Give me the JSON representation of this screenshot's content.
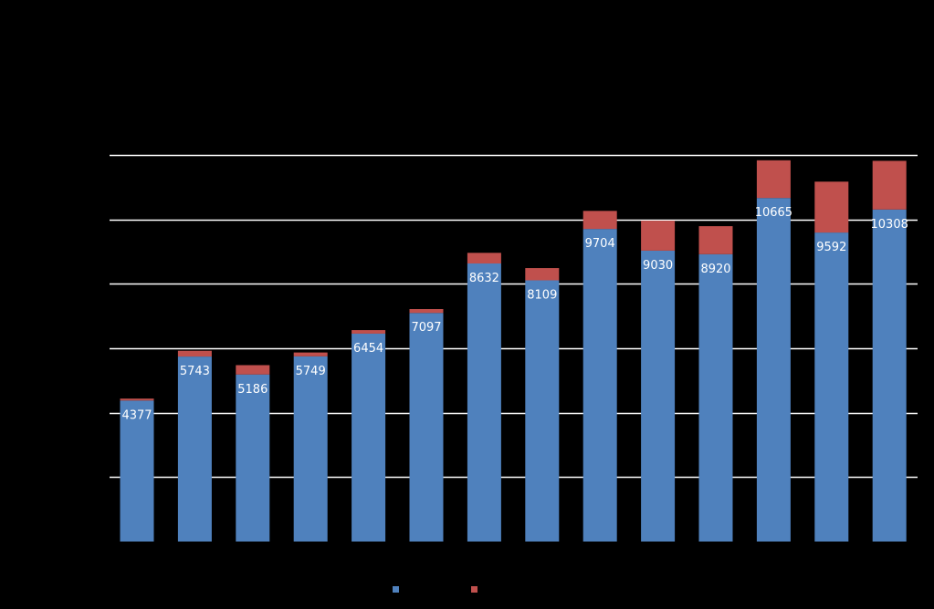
{
  "chart_data": {
    "type": "bar",
    "stacked": true,
    "title": "",
    "xlabel": "",
    "ylabel": "",
    "grid": true,
    "legend_position": "bottom",
    "ylim": [
      0,
      12000
    ],
    "gridlines": [
      2000,
      4000,
      6000,
      8000,
      10000,
      12000
    ],
    "categories": [
      "",
      "",
      "",
      "",
      "",
      "",
      "",
      "",
      "",
      "",
      "",
      "",
      "",
      ""
    ],
    "series": [
      {
        "color": "#4f81bd",
        "values": [
          4377,
          5743,
          5186,
          5749,
          6454,
          7097,
          8632,
          8109,
          9704,
          9030,
          8920,
          10665,
          9592,
          10308
        ],
        "labels": [
          "4377",
          "5743",
          "5186",
          "5749",
          "6454",
          "7097",
          "8632",
          "8109",
          "9704",
          "9030",
          "8920",
          "10665",
          "9592",
          "10308"
        ]
      },
      {
        "color": "#c0504d",
        "values": [
          60,
          180,
          290,
          120,
          110,
          120,
          330,
          380,
          560,
          930,
          870,
          1170,
          1580,
          1510
        ]
      }
    ],
    "grid_color": "#ffffff",
    "label_color": "#ffffff"
  }
}
